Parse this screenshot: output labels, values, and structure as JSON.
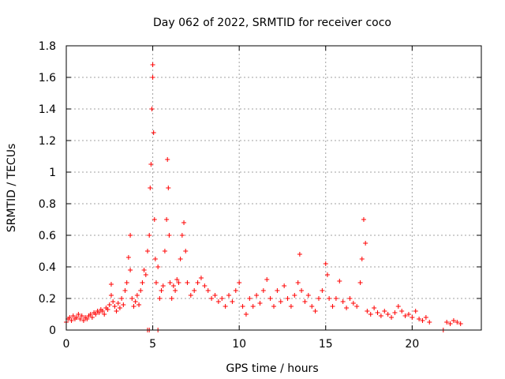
{
  "chart_data": {
    "type": "scatter",
    "title": "Day 062 of 2022, SRMTID for receiver coco",
    "xlabel": "GPS time / hours",
    "ylabel": "SRMTID / TECUs",
    "xlim": [
      0,
      24
    ],
    "ylim": [
      0,
      1.8
    ],
    "xticks": [
      0,
      5,
      10,
      15,
      20
    ],
    "xtick_labels": [
      "0",
      "5",
      "10",
      "15",
      "20"
    ],
    "yticks": [
      0,
      0.2,
      0.4,
      0.6,
      0.8,
      1.0,
      1.2,
      1.4,
      1.6,
      1.8
    ],
    "ytick_labels": [
      "0",
      "0.2",
      "0.4",
      "0.6",
      "0.8",
      "1",
      "1.2",
      "1.4",
      "1.6",
      "1.8"
    ],
    "grid": true,
    "marker": "plus",
    "series": [
      {
        "name": "SRMTID",
        "color": "#ff0000",
        "x": [
          0.0,
          0.1,
          0.2,
          0.3,
          0.4,
          0.5,
          0.6,
          0.7,
          0.8,
          0.9,
          1.0,
          1.1,
          1.2,
          1.3,
          1.4,
          1.5,
          1.6,
          1.7,
          1.8,
          1.9,
          2.0,
          2.1,
          2.2,
          2.3,
          2.4,
          2.5,
          2.6,
          2.6,
          2.7,
          2.8,
          2.9,
          3.0,
          3.1,
          3.2,
          3.3,
          3.4,
          3.5,
          3.6,
          3.7,
          3.7,
          3.8,
          3.9,
          4.0,
          4.1,
          4.2,
          4.3,
          4.4,
          4.5,
          4.6,
          4.7,
          4.8,
          4.85,
          4.9,
          4.95,
          5.0,
          5.0,
          5.05,
          5.1,
          5.15,
          5.2,
          5.3,
          5.4,
          5.5,
          5.6,
          5.7,
          5.8,
          5.85,
          5.9,
          5.95,
          6.0,
          6.1,
          6.2,
          6.3,
          6.4,
          6.5,
          6.6,
          6.7,
          6.8,
          6.9,
          7.0,
          7.2,
          7.4,
          7.6,
          7.8,
          8.0,
          8.2,
          8.4,
          8.6,
          8.8,
          9.0,
          9.2,
          9.4,
          9.6,
          9.8,
          10.0,
          10.2,
          10.4,
          10.6,
          10.8,
          11.0,
          11.2,
          11.4,
          11.6,
          11.8,
          12.0,
          12.2,
          12.4,
          12.6,
          12.8,
          13.0,
          13.2,
          13.4,
          13.5,
          13.6,
          13.8,
          14.0,
          14.2,
          14.4,
          14.6,
          14.8,
          15.0,
          15.1,
          15.2,
          15.4,
          15.6,
          15.8,
          16.0,
          16.2,
          16.4,
          16.6,
          16.8,
          17.0,
          17.1,
          17.2,
          17.3,
          17.4,
          17.6,
          17.8,
          18.0,
          18.2,
          18.4,
          18.6,
          18.8,
          19.0,
          19.2,
          19.4,
          19.6,
          19.8,
          20.0,
          20.2,
          20.4,
          20.6,
          20.8,
          21.0,
          21.8,
          22.0,
          22.2,
          22.4,
          22.6,
          22.8,
          4.7,
          4.8,
          5.3
        ],
        "y": [
          0.05,
          0.07,
          0.08,
          0.06,
          0.09,
          0.07,
          0.08,
          0.1,
          0.07,
          0.09,
          0.06,
          0.08,
          0.07,
          0.09,
          0.1,
          0.08,
          0.11,
          0.1,
          0.12,
          0.11,
          0.13,
          0.12,
          0.1,
          0.14,
          0.13,
          0.16,
          0.22,
          0.29,
          0.18,
          0.15,
          0.12,
          0.17,
          0.14,
          0.2,
          0.16,
          0.25,
          0.3,
          0.46,
          0.38,
          0.6,
          0.2,
          0.15,
          0.18,
          0.22,
          0.16,
          0.25,
          0.3,
          0.38,
          0.35,
          0.5,
          0.6,
          0.9,
          1.05,
          1.4,
          1.6,
          1.68,
          1.25,
          0.7,
          0.45,
          0.3,
          0.4,
          0.2,
          0.25,
          0.28,
          0.5,
          0.7,
          1.08,
          0.9,
          0.6,
          0.3,
          0.2,
          0.28,
          0.25,
          0.32,
          0.3,
          0.45,
          0.6,
          0.68,
          0.5,
          0.3,
          0.22,
          0.25,
          0.3,
          0.33,
          0.28,
          0.25,
          0.2,
          0.22,
          0.18,
          0.2,
          0.15,
          0.22,
          0.18,
          0.25,
          0.3,
          0.15,
          0.1,
          0.2,
          0.15,
          0.22,
          0.17,
          0.25,
          0.32,
          0.2,
          0.15,
          0.25,
          0.18,
          0.28,
          0.2,
          0.15,
          0.22,
          0.3,
          0.48,
          0.25,
          0.18,
          0.22,
          0.15,
          0.12,
          0.2,
          0.25,
          0.42,
          0.35,
          0.2,
          0.15,
          0.2,
          0.31,
          0.18,
          0.14,
          0.2,
          0.17,
          0.15,
          0.3,
          0.45,
          0.7,
          0.55,
          0.12,
          0.1,
          0.14,
          0.11,
          0.09,
          0.12,
          0.1,
          0.08,
          0.11,
          0.15,
          0.12,
          0.09,
          0.1,
          0.08,
          0.12,
          0.07,
          0.06,
          0.08,
          0.05,
          0.0,
          0.05,
          0.04,
          0.06,
          0.05,
          0.04,
          0.0,
          0.0,
          0.0
        ]
      }
    ]
  }
}
